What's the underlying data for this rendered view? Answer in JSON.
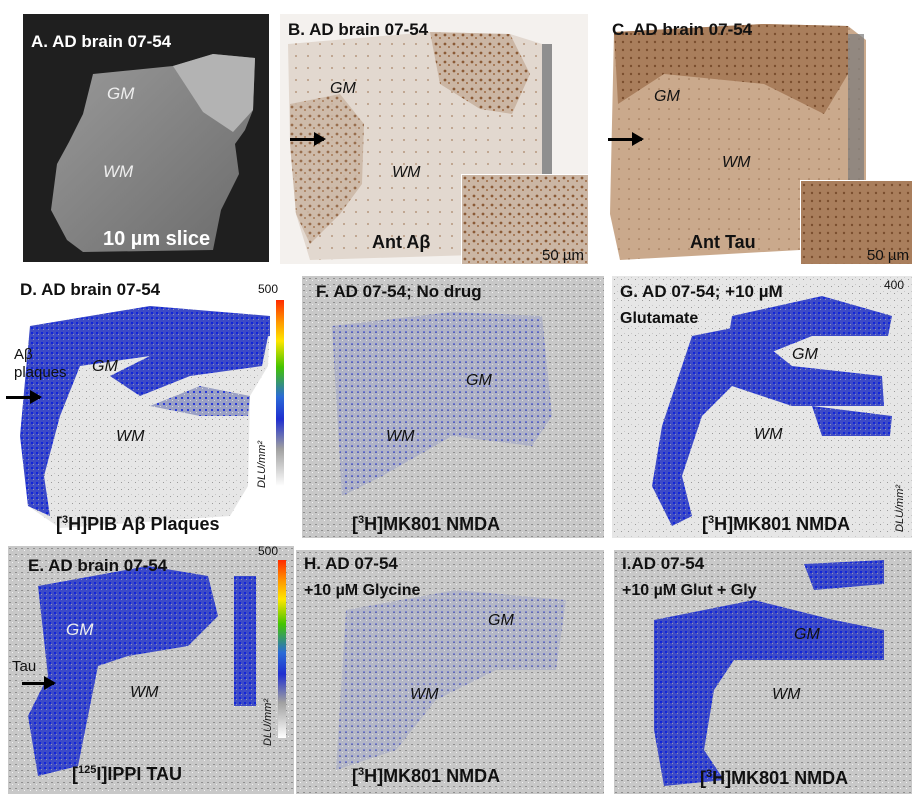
{
  "panels": {
    "A": {
      "title": "A. AD brain 07-54",
      "gm": "GM",
      "wm": "WM",
      "caption": "10 µm slice"
    },
    "B": {
      "title": "B. AD brain 07-54",
      "gm": "GM",
      "wm": "WM",
      "caption": "Ant Aβ",
      "scale": "50 µm"
    },
    "C": {
      "title": "C. AD brain 07-54",
      "gm": "GM",
      "wm": "WM",
      "caption": "Ant Tau",
      "scale": "50 µm"
    },
    "D": {
      "title": "D. AD brain 07-54",
      "gm": "GM",
      "wm": "WM",
      "side_label": "Aβ plaques",
      "cmax": "500",
      "unit": "DLU/mm²",
      "cap_pre": "[",
      "cap_sup": "3",
      "cap_post": "H]PIB Aβ Plaques"
    },
    "E": {
      "title": "E. AD brain 07-54",
      "gm": "GM",
      "wm": "WM",
      "side_label": "Tau",
      "cmax": "500",
      "unit": "DLU/mm²",
      "cap_pre": "[",
      "cap_sup": "125",
      "cap_post": "I]IPPI TAU"
    },
    "F": {
      "title": "F.  AD 07-54; No drug",
      "gm": "GM",
      "wm": "WM",
      "cap_pre": "[",
      "cap_sup": "3",
      "cap_post": "H]MK801 NMDA"
    },
    "G": {
      "title": "G. AD 07-54;  +10 µM",
      "title2": "Glutamate",
      "gm": "GM",
      "wm": "WM",
      "cmax": "400",
      "unit": "DLU/mm²",
      "cap_pre": "[",
      "cap_sup": "3",
      "cap_post": "H]MK801 NMDA"
    },
    "H": {
      "title": "H. AD 07-54",
      "title2": "+10 µM Glycine",
      "gm": "GM",
      "wm": "WM",
      "cap_pre": "[",
      "cap_sup": "3",
      "cap_post": "H]MK801 NMDA"
    },
    "I": {
      "title": "I.AD 07-54",
      "title2": "+10 µM Glut + Gly",
      "gm": "GM",
      "wm": "WM",
      "cap_pre": "[",
      "cap_sup": "3",
      "cap_post": "H]MK801 NMDA"
    }
  },
  "colors": {
    "stain_brown": "#8a5a36",
    "tissue_light": "#d9cfc6",
    "autorad_blue": "#1f32d6",
    "autorad_gray": "#b9b9b9",
    "photo_dark": "#2a2a2a"
  }
}
